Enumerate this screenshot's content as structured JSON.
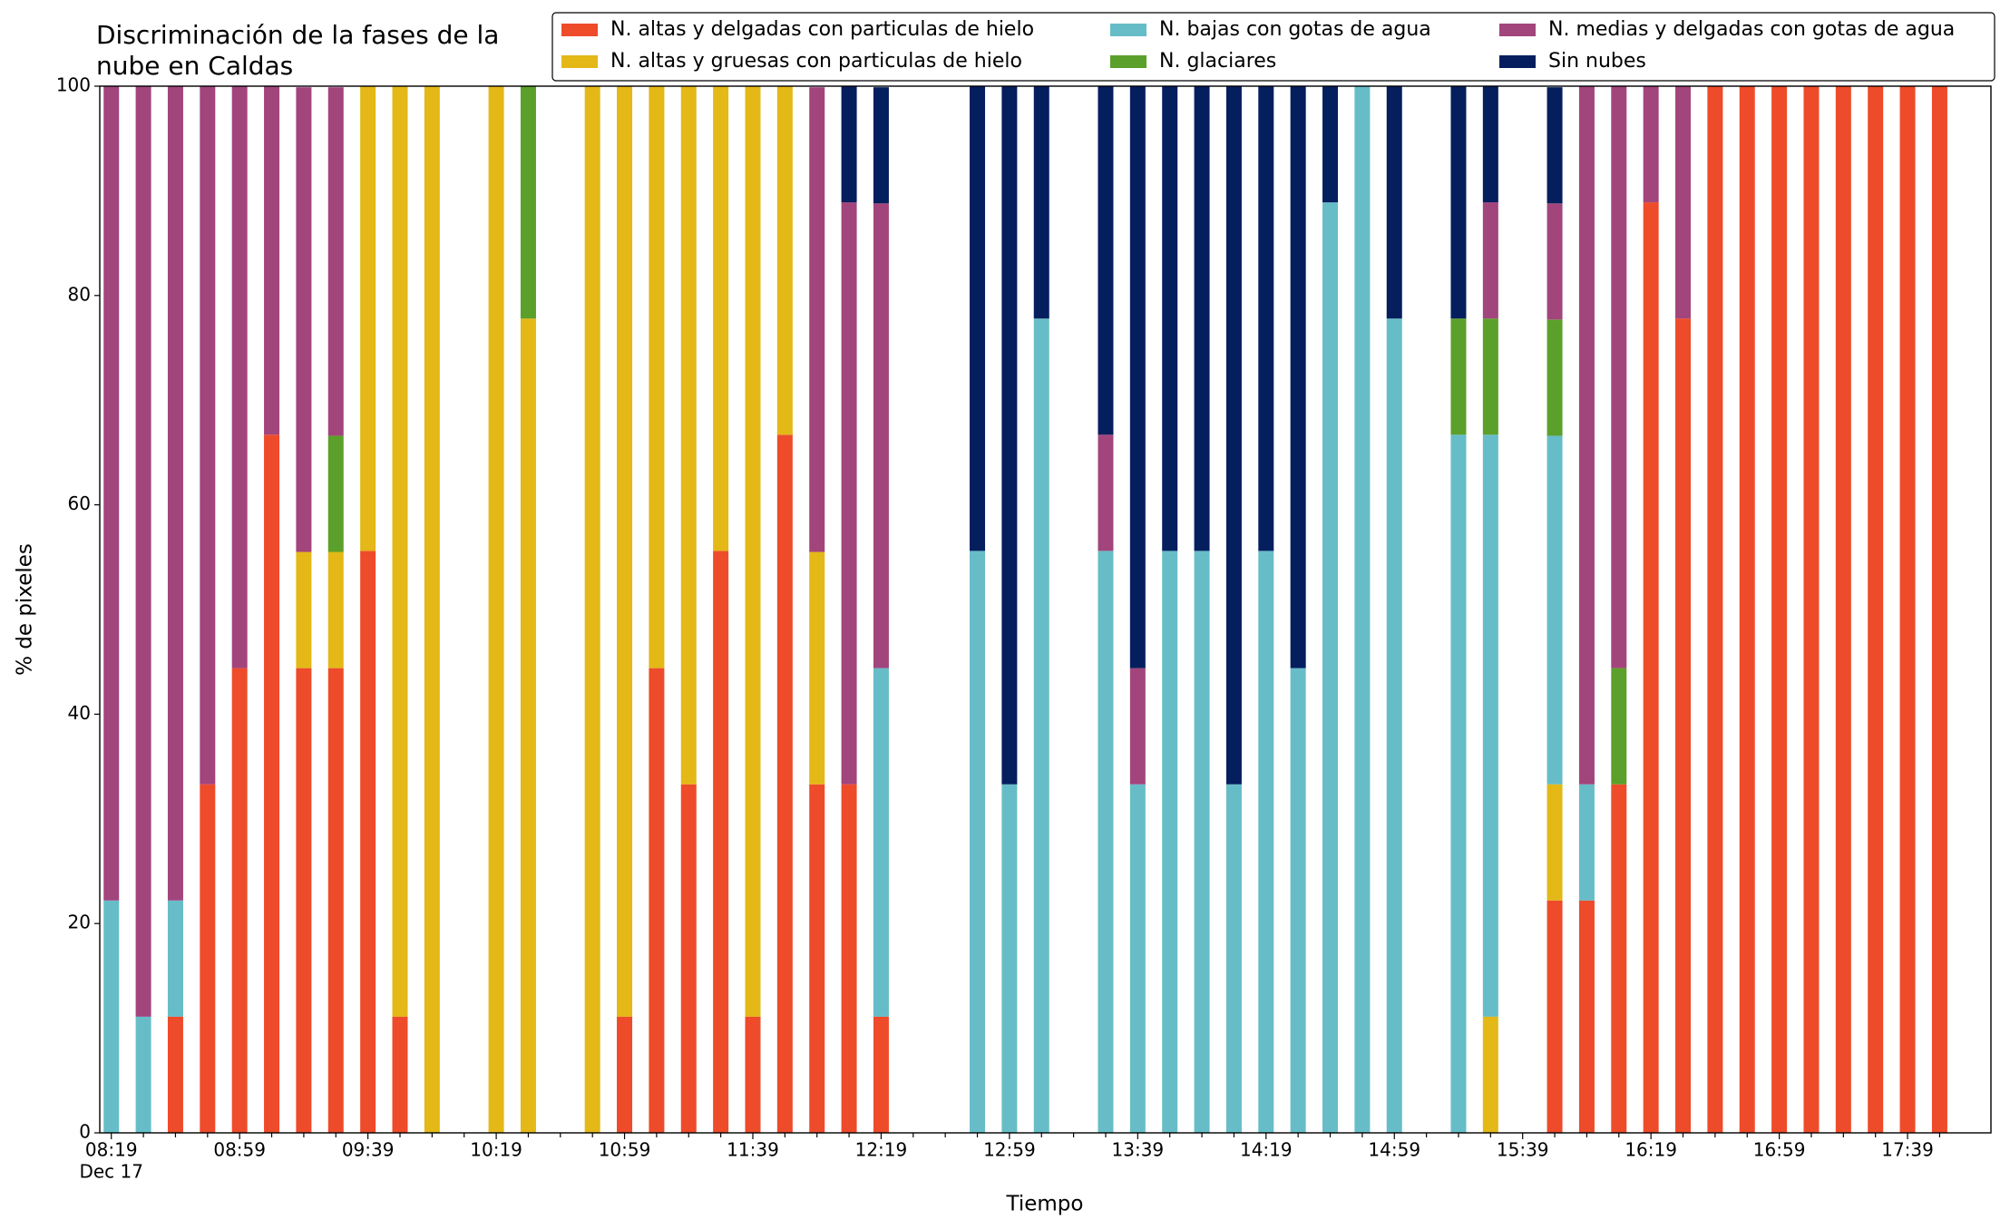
{
  "chart_data": {
    "type": "stacked_bar",
    "title": [
      "Discriminación de la fases de la",
      "nube en Caldas"
    ],
    "xlabel": "Tiempo",
    "ylabel": "% de pixeles",
    "x_sublabel": "Dec 17",
    "categories": [
      "08:19",
      null,
      null,
      null,
      "08:59",
      null,
      null,
      null,
      "09:39",
      null,
      null,
      null,
      "10:19",
      null,
      null,
      null,
      "10:59",
      null,
      null,
      null,
      "11:39",
      null,
      null,
      null,
      "12:19",
      null,
      null,
      null,
      "12:59",
      null,
      null,
      null,
      "13:39",
      null,
      null,
      null,
      "14:19",
      null,
      null,
      null,
      "14:59",
      null,
      null,
      null,
      "15:39",
      null,
      null,
      null,
      "16:19",
      null,
      null,
      null,
      "16:59",
      null,
      null,
      null,
      "17:39",
      null
    ],
    "ylim": [
      0,
      100
    ],
    "yticks": [
      0,
      20,
      40,
      60,
      80,
      100
    ],
    "grid": false,
    "series": [
      {
        "name": "N. altas y delgadas con particulas de hielo",
        "color": "#ee4b2b",
        "values": [
          0,
          0,
          11.1,
          33.3,
          44.4,
          66.7,
          44.4,
          44.4,
          55.6,
          11.1,
          0,
          0,
          0,
          0,
          0,
          0,
          11.1,
          44.4,
          33.3,
          55.6,
          11.1,
          66.7,
          33.3,
          33.3,
          11.1,
          0,
          0,
          0,
          0,
          0,
          0,
          0,
          0,
          0,
          0,
          0,
          0,
          0,
          0,
          0,
          0,
          0,
          0,
          0,
          0,
          22.2,
          22.2,
          33.3,
          88.9,
          77.8,
          100,
          100,
          100,
          100,
          100,
          100,
          100,
          100
        ]
      },
      {
        "name": "N. altas y gruesas con particulas de hielo",
        "color": "#e3b817",
        "values": [
          0,
          0,
          0,
          0,
          0,
          0,
          11.1,
          11.1,
          44.4,
          88.9,
          100,
          0,
          100,
          77.8,
          0,
          100,
          88.9,
          55.6,
          66.7,
          44.4,
          88.9,
          33.3,
          22.2,
          0,
          0,
          0,
          0,
          0,
          0,
          0,
          0,
          0,
          0,
          0,
          0,
          0,
          0,
          0,
          0,
          0,
          0,
          0,
          0,
          11.1,
          0,
          11.1,
          0,
          0,
          0,
          0,
          0,
          0,
          0,
          0,
          0,
          0,
          0,
          0
        ]
      },
      {
        "name": "N. bajas con gotas de agua",
        "color": "#66bdc8",
        "values": [
          22.2,
          11.1,
          11.1,
          0,
          0,
          0,
          0,
          0,
          0,
          0,
          0,
          0,
          0,
          0,
          0,
          0,
          0,
          0,
          0,
          0,
          0,
          0,
          0,
          0,
          33.3,
          0,
          0,
          55.6,
          33.3,
          77.8,
          0,
          55.6,
          33.3,
          55.6,
          55.6,
          33.3,
          55.6,
          44.4,
          88.9,
          100,
          77.8,
          0,
          66.7,
          55.6,
          0,
          33.3,
          11.1,
          0,
          0,
          0,
          0,
          0,
          0,
          0,
          0,
          0,
          0,
          0
        ]
      },
      {
        "name": "N. glaciares",
        "color": "#5ba02a",
        "values": [
          0,
          0,
          0,
          0,
          0,
          0,
          0,
          11.1,
          0,
          0,
          0,
          0,
          0,
          22.2,
          0,
          0,
          0,
          0,
          0,
          0,
          0,
          0,
          0,
          0,
          0,
          0,
          0,
          0,
          0,
          0,
          0,
          0,
          0,
          0,
          0,
          0,
          0,
          0,
          0,
          0,
          0,
          0,
          11.1,
          11.1,
          0,
          11.1,
          0,
          11.1,
          0,
          0,
          0,
          0,
          0,
          0,
          0,
          0,
          0,
          0
        ]
      },
      {
        "name": "N. medias y delgadas con gotas de agua",
        "color": "#a2457c",
        "values": [
          77.8,
          88.9,
          77.8,
          66.7,
          55.6,
          33.3,
          44.4,
          33.3,
          0,
          0,
          0,
          0,
          0,
          0,
          0,
          0,
          0,
          0,
          0,
          0,
          0,
          0,
          44.4,
          55.6,
          44.4,
          0,
          0,
          0,
          0,
          0,
          0,
          11.1,
          11.1,
          0,
          0,
          0,
          0,
          0,
          0,
          0,
          0,
          0,
          0,
          11.1,
          0,
          11.1,
          66.7,
          55.6,
          11.1,
          22.2,
          0,
          0,
          0,
          0,
          0,
          0,
          0,
          0
        ]
      },
      {
        "name": "Sin nubes",
        "color": "#041e5e",
        "values": [
          0,
          0,
          0,
          0,
          0,
          0,
          0,
          0,
          0,
          0,
          0,
          0,
          0,
          0,
          0,
          0,
          0,
          0,
          0,
          0,
          0,
          0,
          0,
          11.1,
          11.1,
          0,
          0,
          44.4,
          66.7,
          22.2,
          0,
          33.3,
          55.6,
          44.4,
          44.4,
          66.7,
          44.4,
          55.6,
          11.1,
          0,
          22.2,
          0,
          22.2,
          11.1,
          0,
          11.1,
          0,
          0,
          0,
          0,
          0,
          0,
          0,
          0,
          0,
          0,
          0,
          0
        ]
      }
    ]
  }
}
